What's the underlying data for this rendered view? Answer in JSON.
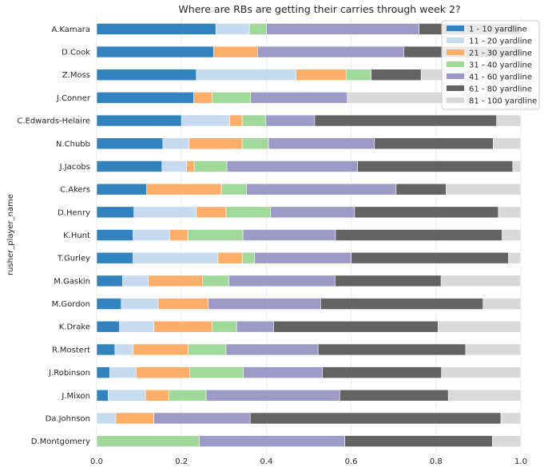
{
  "chart_data": {
    "type": "bar",
    "orientation": "horizontal",
    "stacked": true,
    "title": "Where are RBs are getting their carries through week 2?",
    "xlabel": "",
    "ylabel": "rusher_player_name",
    "xlim": [
      0,
      1.05
    ],
    "xticks": [
      "0.0",
      "0.2",
      "0.4",
      "0.6",
      "0.8",
      "1.0"
    ],
    "grid": true,
    "legend_position": "top-right",
    "categories": [
      "A.Kamara",
      "D.Cook",
      "Z.Moss",
      "J.Conner",
      "C.Edwards-Helaire",
      "N.Chubb",
      "J.Jacobs",
      "C.Akers",
      "D.Henry",
      "K.Hunt",
      "T.Gurley",
      "M.Gaskin",
      "M.Gordon",
      "K.Drake",
      "R.Mostert",
      "J.Robinson",
      "J.Mixon",
      "Da.Johnson",
      "D.Montgomery"
    ],
    "series": [
      {
        "name": "1 - 10 yardline",
        "color": "#3182bd",
        "values": [
          0.281,
          0.276,
          0.235,
          0.229,
          0.2,
          0.156,
          0.154,
          0.118,
          0.088,
          0.086,
          0.086,
          0.061,
          0.058,
          0.054,
          0.043,
          0.031,
          0.027,
          0.0,
          0.0
        ]
      },
      {
        "name": "11 - 20 yardline",
        "color": "#c6dbef",
        "values": [
          0.079,
          0.0,
          0.235,
          0.0,
          0.114,
          0.062,
          0.058,
          0.0,
          0.147,
          0.086,
          0.2,
          0.061,
          0.087,
          0.081,
          0.043,
          0.062,
          0.088,
          0.045,
          0.0
        ]
      },
      {
        "name": "21 - 30 yardline",
        "color": "#fdae6b",
        "values": [
          0.0,
          0.103,
          0.118,
          0.043,
          0.029,
          0.125,
          0.018,
          0.176,
          0.07,
          0.043,
          0.057,
          0.128,
          0.118,
          0.137,
          0.13,
          0.126,
          0.055,
          0.09,
          0.0
        ]
      },
      {
        "name": "31 - 40 yardline",
        "color": "#a1d99b",
        "values": [
          0.04,
          0.0,
          0.059,
          0.091,
          0.056,
          0.062,
          0.077,
          0.059,
          0.105,
          0.13,
          0.029,
          0.062,
          0.0,
          0.058,
          0.089,
          0.127,
          0.088,
          0.0,
          0.242
        ]
      },
      {
        "name": "41 - 60 yardline",
        "color": "#9e9ac8",
        "values": [
          0.36,
          0.345,
          0.0,
          0.228,
          0.115,
          0.25,
          0.308,
          0.353,
          0.198,
          0.218,
          0.228,
          0.25,
          0.265,
          0.087,
          0.217,
          0.186,
          0.315,
          0.227,
          0.343
        ]
      },
      {
        "name": "61 - 80 yardline",
        "color": "#636363",
        "values": [
          0.24,
          0.276,
          0.118,
          0.0,
          0.429,
          0.28,
          0.366,
          0.118,
          0.339,
          0.393,
          0.371,
          0.25,
          0.383,
          0.388,
          0.348,
          0.281,
          0.256,
          0.591,
          0.348
        ]
      },
      {
        "name": "81 - 100 yardline",
        "color": "#d9d9d9",
        "values": [
          0.0,
          0.0,
          0.235,
          0.409,
          0.057,
          0.065,
          0.019,
          0.176,
          0.053,
          0.044,
          0.029,
          0.188,
          0.089,
          0.195,
          0.13,
          0.187,
          0.171,
          0.047,
          0.067
        ]
      }
    ]
  }
}
